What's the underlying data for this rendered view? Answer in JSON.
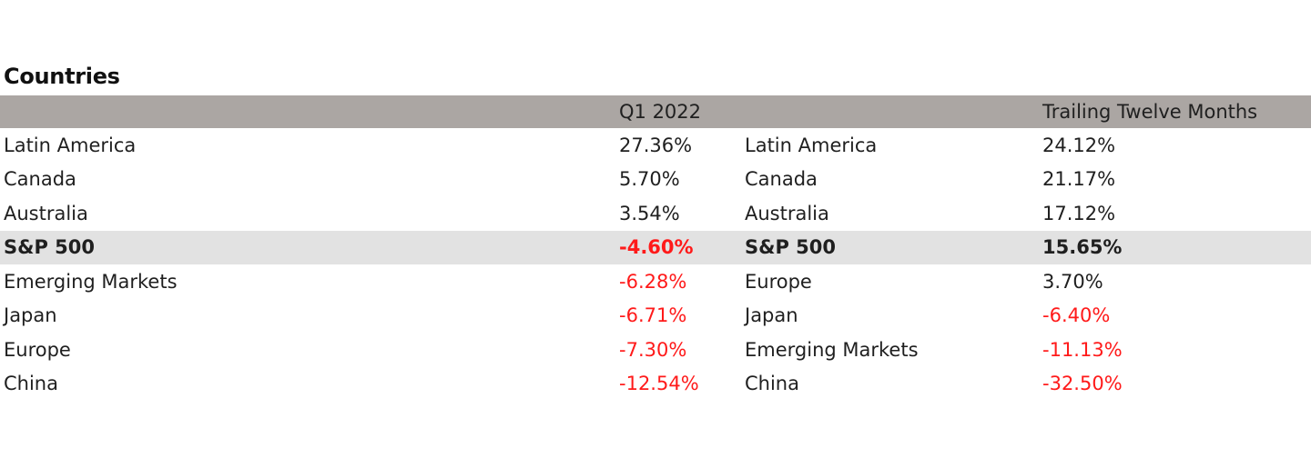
{
  "title": "Countries",
  "colors": {
    "header_bg": "#aba6a3",
    "highlight_bg": "#e2e2e2",
    "negative": "#ff1a1a",
    "text": "#1f1f1f"
  },
  "chart_data": {
    "type": "table",
    "title": "Countries",
    "columns": [
      "",
      "Q1 2022",
      "",
      "Trailing Twelve Months"
    ],
    "highlight_row": "S&P 500",
    "rows": [
      {
        "q1_name": "Latin America",
        "q1_value": "27.36%",
        "ttm_name": "Latin America",
        "ttm_value": "24.12%"
      },
      {
        "q1_name": "Canada",
        "q1_value": "5.70%",
        "ttm_name": "Canada",
        "ttm_value": "21.17%"
      },
      {
        "q1_name": "Australia",
        "q1_value": "3.54%",
        "ttm_name": "Australia",
        "ttm_value": "17.12%"
      },
      {
        "q1_name": "S&P 500",
        "q1_value": "-4.60%",
        "ttm_name": "S&P 500",
        "ttm_value": "15.65%"
      },
      {
        "q1_name": "Emerging Markets",
        "q1_value": "-6.28%",
        "ttm_name": "Europe",
        "ttm_value": "3.70%"
      },
      {
        "q1_name": "Japan",
        "q1_value": "-6.71%",
        "ttm_name": "Japan",
        "ttm_value": "-6.40%"
      },
      {
        "q1_name": "Europe",
        "q1_value": "-7.30%",
        "ttm_name": "Emerging Markets",
        "ttm_value": "-11.13%"
      },
      {
        "q1_name": "China",
        "q1_value": "-12.54%",
        "ttm_name": "China",
        "ttm_value": "-32.50%"
      }
    ]
  }
}
